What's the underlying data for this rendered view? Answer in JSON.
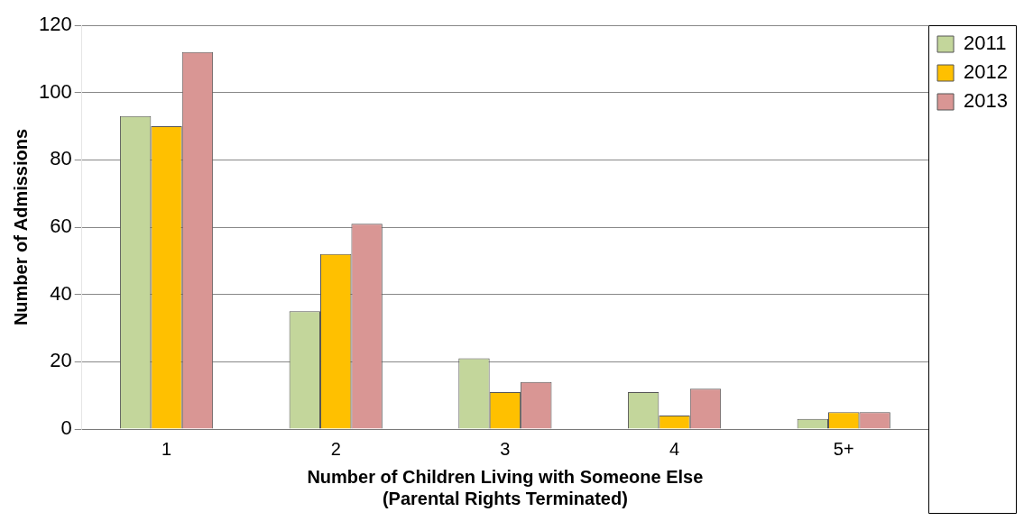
{
  "chart_data": {
    "type": "bar",
    "xlabel": "Number of Children Living with Someone Else\n(Parental Rights Terminated)",
    "ylabel": "Number of Admissions",
    "categories": [
      "1",
      "2",
      "3",
      "4",
      "5+"
    ],
    "series": [
      {
        "name": "2011",
        "color": "#c3d69b",
        "values": [
          93,
          35,
          21,
          11,
          3
        ]
      },
      {
        "name": "2012",
        "color": "#ffc000",
        "values": [
          90,
          52,
          11,
          4,
          5
        ]
      },
      {
        "name": "2013",
        "color": "#d99694",
        "values": [
          112,
          61,
          14,
          12,
          5
        ]
      }
    ],
    "ylim": [
      0,
      120
    ],
    "yticks": [
      0,
      20,
      40,
      60,
      80,
      100,
      120
    ],
    "grid": "y",
    "legend": "top right"
  }
}
